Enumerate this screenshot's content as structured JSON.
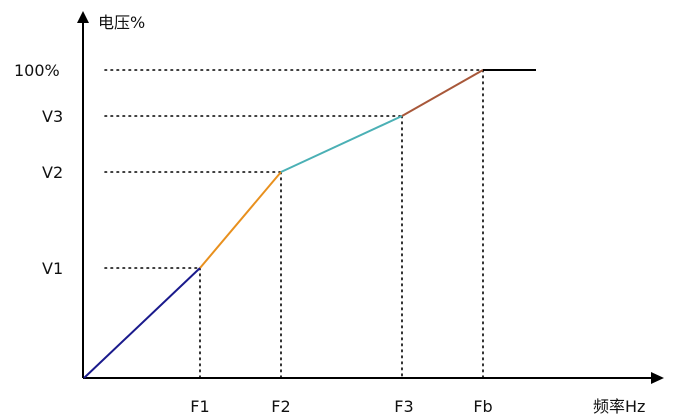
{
  "diagram": {
    "y_axis_label": "电压%",
    "x_axis_label": "频率Hz",
    "y_ticks": {
      "v1": "V1",
      "v2": "V2",
      "v3": "V3",
      "top": "100%"
    },
    "x_ticks": {
      "f1": "F1",
      "f2": "F2",
      "f3": "F3",
      "fb": "Fb"
    },
    "segment_colors": {
      "origin_to_f1": "#1a1a8c",
      "f1_to_f2": "#e8901e",
      "f2_to_f3": "#4bb0b5",
      "f3_to_fb": "#a8583a",
      "above_fb": "#000000"
    }
  }
}
